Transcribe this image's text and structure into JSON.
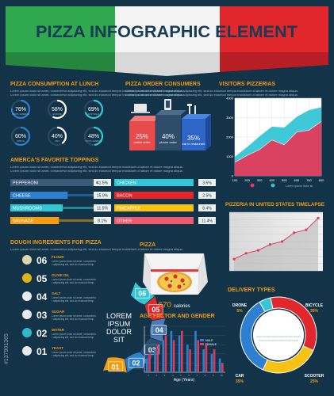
{
  "header": {
    "title": "PIZZA INFOGRAPHIC ELEMENT"
  },
  "colors": {
    "background": "#123348",
    "green": "#2fa84f",
    "red": "#e2272c",
    "orange": "#f39c12",
    "yellow": "#f6c214",
    "blue": "#2d7fd1",
    "cyan": "#35c6d6",
    "pink": "#f05a6e"
  },
  "watermark": {
    "id_text": "#137901365"
  },
  "lorem": {
    "short": "Lorem ipsum dolor sit amet, consectetur adipiscing elit, sed do eiusmod tempor incididunt ut labore et dolore magna aliqua.",
    "big": [
      "LOREM",
      "IPSUM",
      "DOLOR",
      "SIT"
    ]
  },
  "consumption": {
    "title": "PIZZA CONSUMPTION AT LUNCH",
    "donuts": [
      {
        "pct": "76%",
        "label": "NORTH AMERICA",
        "value": 76
      },
      {
        "pct": "58%",
        "label": "EUROPE",
        "value": 58
      },
      {
        "pct": "69%",
        "label": "AUSTRALIA",
        "value": 69
      },
      {
        "pct": "60%",
        "label": "AFRICA",
        "value": 60
      },
      {
        "pct": "40%",
        "label": "ASIA",
        "value": 40
      },
      {
        "pct": "48%",
        "label": "SOUTH AMERICA",
        "value": 48
      }
    ]
  },
  "consumers": {
    "title": "PIZZA ORDER CONSUMERS",
    "items": [
      {
        "pct": "25%",
        "label": "online order"
      },
      {
        "pct": "40%",
        "label": "phone order"
      },
      {
        "pct": "35%",
        "label": "eat in restaurant"
      }
    ]
  },
  "visitors": {
    "title": "VISITORS PIZZERIAS"
  },
  "toppings": {
    "title": "AMERCA'S FAVORITE TOPPINGS",
    "left": [
      {
        "name": "PEPPERONI",
        "pct": "41.5%",
        "value": 41.5
      },
      {
        "name": "CHEESE",
        "pct": "15.9%",
        "value": 15.9
      },
      {
        "name": "MUSHROOMS",
        "pct": "11.5%",
        "value": 11.5
      },
      {
        "name": "SAUSAGE",
        "pct": "8.1%",
        "value": 8.1
      }
    ],
    "right": [
      {
        "name": "CHICKEN",
        "pct": "3.6%",
        "value": 3.6
      },
      {
        "name": "BACON",
        "pct": "2.5%",
        "value": 2.5
      },
      {
        "name": "PINEAPPLE",
        "pct": "8.4%",
        "value": 8.4
      },
      {
        "name": "OTHER",
        "pct": "11.4%",
        "value": 11.4
      }
    ]
  },
  "timelapse": {
    "title": "PIZZERIA IN UNITED STATES TIMELAPSE"
  },
  "dough": {
    "title": "DOUGH INGREDIENTS FOR PIZZA",
    "items": [
      {
        "num": "06",
        "name": "FLOUR"
      },
      {
        "num": "05",
        "name": "OLIVE OIL"
      },
      {
        "num": "04",
        "name": "SALT"
      },
      {
        "num": "03",
        "name": "SUGAR"
      },
      {
        "num": "02",
        "name": "WATER"
      },
      {
        "num": "01",
        "name": "YEAST"
      }
    ]
  },
  "pizza": {
    "title": "PIZZA",
    "calories_value": "670",
    "calories_label": "calories"
  },
  "age": {
    "title": "AGE FACTOR AND GENDER",
    "legend_male": "MALE",
    "legend_female": "FEMALE",
    "xlabel": "Age (Years)"
  },
  "delivery": {
    "title": "DELIVERY TYPES",
    "items": [
      {
        "name": "DRONE",
        "pct": "5%"
      },
      {
        "name": "BICYCLE",
        "pct": "35%"
      },
      {
        "name": "CAR",
        "pct": "35%"
      },
      {
        "name": "SCOOTER",
        "pct": "25%"
      }
    ]
  },
  "chart_data": [
    {
      "type": "pie",
      "title": "PIZZA CONSUMPTION AT LUNCH",
      "categories": [
        "NORTH AMERICA",
        "EUROPE",
        "AUSTRALIA",
        "AFRICA",
        "ASIA",
        "SOUTH AMERICA"
      ],
      "values": [
        76,
        58,
        69,
        60,
        40,
        48
      ]
    },
    {
      "type": "bar",
      "title": "PIZZA ORDER CONSUMERS",
      "categories": [
        "online order",
        "phone order",
        "eat in restaurant"
      ],
      "values": [
        25,
        40,
        35
      ]
    },
    {
      "type": "area",
      "title": "VISITORS PIZZERIAS",
      "x": [
        100,
        200,
        300,
        400,
        500,
        600,
        700,
        800
      ],
      "ylim": [
        0,
        4000
      ],
      "yticks": [
        0,
        1000,
        2000,
        3000,
        4000
      ],
      "series": [
        {
          "values": [
            1000,
            1500,
            2050,
            2550,
            2500,
            3050,
            3400,
            3550
          ],
          "color": "#35c6d6"
        },
        {
          "values": [
            700,
            1050,
            1350,
            1850,
            1600,
            2250,
            2350,
            2800
          ],
          "color": "#e23b5a"
        }
      ]
    },
    {
      "type": "bar",
      "title": "AMERCA'S FAVORITE TOPPINGS",
      "categories": [
        "PEPPERONI",
        "CHEESE",
        "MUSHROOMS",
        "SAUSAGE",
        "CHICKEN",
        "BACON",
        "PINEAPPLE",
        "OTHER"
      ],
      "values": [
        41.5,
        15.9,
        11.5,
        8.1,
        3.6,
        2.5,
        8.4,
        11.4
      ]
    },
    {
      "type": "line",
      "title": "PIZZERIA IN UNITED STATES TIMELAPSE",
      "x": [
        1,
        2,
        3,
        4,
        5,
        6,
        7,
        8
      ],
      "ylim": [
        0,
        10
      ],
      "series": [
        {
          "values": [
            2,
            3,
            3.5,
            4.5,
            5,
            6.5,
            7,
            9
          ]
        }
      ]
    },
    {
      "type": "bar",
      "title": "AGE FACTOR AND GENDER",
      "xlabel": "Age (Years)",
      "categories": [
        "1",
        "2",
        "3",
        "4",
        "5",
        "6",
        "7",
        "8",
        "9",
        "10"
      ],
      "series": [
        {
          "name": "MALE",
          "values": [
            3,
            5,
            7,
            9,
            8,
            6,
            9,
            5,
            4,
            3
          ]
        },
        {
          "name": "FEMALE",
          "values": [
            4,
            6,
            8,
            7,
            9,
            5,
            7,
            6,
            5,
            2
          ]
        }
      ]
    },
    {
      "type": "pie",
      "title": "DELIVERY TYPES",
      "categories": [
        "DRONE",
        "BICYCLE",
        "CAR",
        "SCOOTER"
      ],
      "values": [
        5,
        35,
        35,
        25
      ]
    }
  ]
}
